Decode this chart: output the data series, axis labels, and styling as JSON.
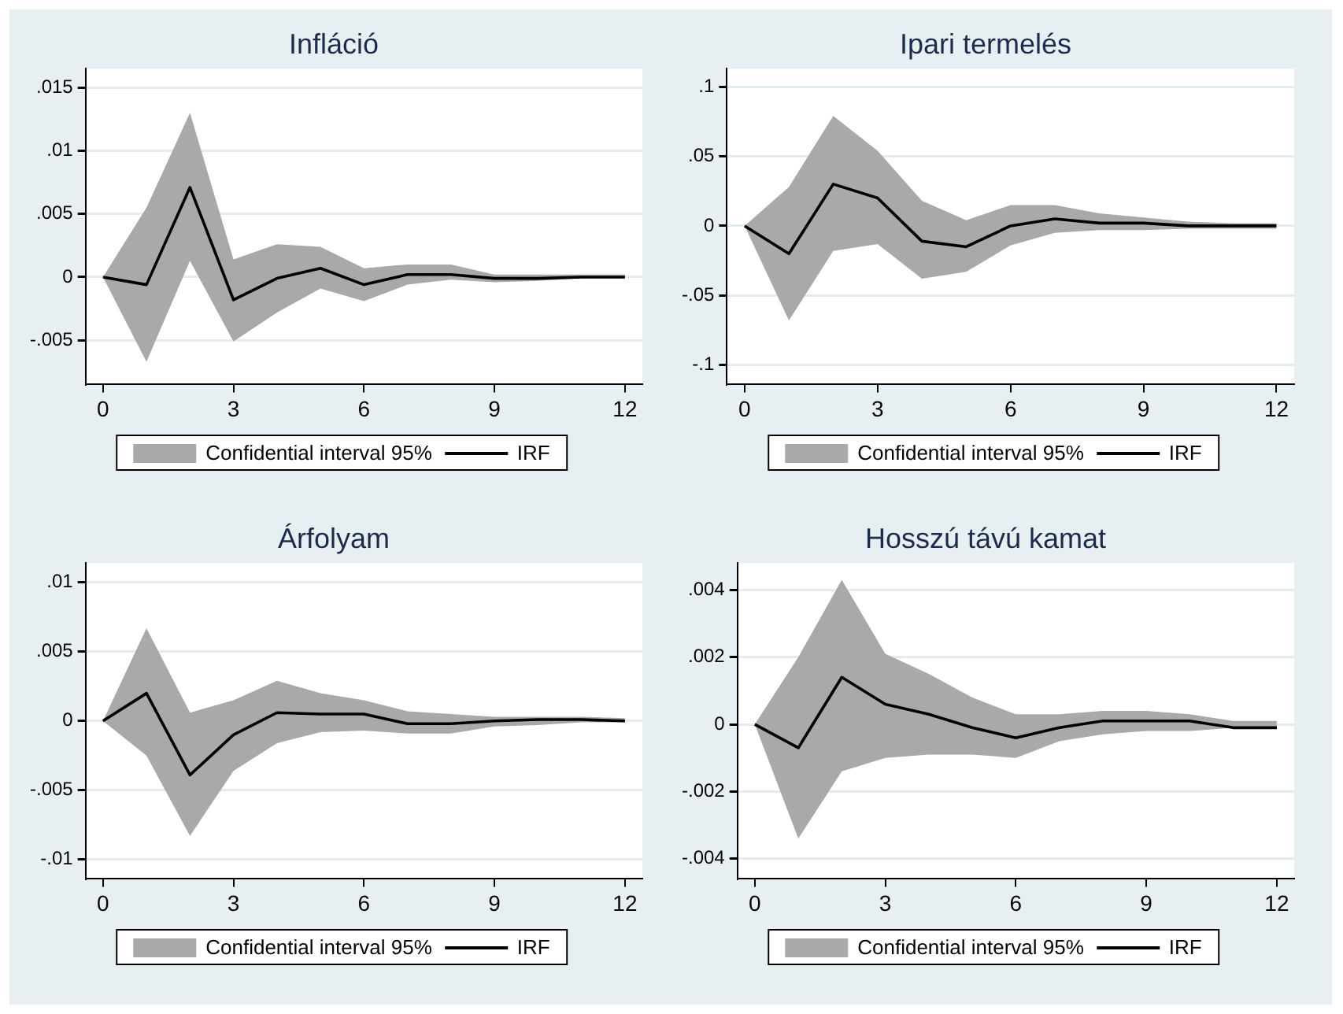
{
  "chart_data": [
    {
      "type": "line",
      "title": "Infláció",
      "annotations": [
        "Confidential interval 95%"
      ],
      "x": [
        0,
        1,
        2,
        3,
        4,
        5,
        6,
        7,
        8,
        9,
        10,
        11,
        12
      ],
      "xlim": [
        -0.4,
        12.4
      ],
      "xticks": [
        0,
        3,
        6,
        9,
        12
      ],
      "ylim": [
        -0.0085,
        0.0165
      ],
      "yticks": [
        {
          "value": -0.005,
          "label": "-.005"
        },
        {
          "value": 0,
          "label": "0"
        },
        {
          "value": 0.005,
          "label": ".005"
        },
        {
          "value": 0.01,
          "label": ".01"
        },
        {
          "value": 0.015,
          "label": ".015"
        }
      ],
      "grid": "y",
      "legend": "bottom",
      "marker": "none",
      "line_style": "solid",
      "series": [
        {
          "name": "IRF",
          "type": "line",
          "color": "#000000",
          "values": [
            0,
            -0.0006,
            0.0071,
            -0.0018,
            -0.0001,
            0.0007,
            -0.0006,
            0.0002,
            0.0002,
            -0.0001,
            -0.0001,
            0,
            0
          ],
          "lower": [
            0,
            -0.0067,
            0.0013,
            -0.0051,
            -0.0028,
            -0.0009,
            -0.0019,
            -0.0006,
            -0.0002,
            -0.0004,
            -0.0003,
            -0.0001,
            -0.0001
          ],
          "upper": [
            0,
            0.0055,
            0.013,
            0.0014,
            0.0026,
            0.0024,
            0.0007,
            0.001,
            0.001,
            0.0002,
            0.0002,
            0.0002,
            0.0002
          ]
        }
      ]
    },
    {
      "type": "line",
      "title": "Ipari termelés",
      "annotations": [
        "Confidential interval 95%"
      ],
      "x": [
        0,
        1,
        2,
        3,
        4,
        5,
        6,
        7,
        8,
        9,
        10,
        11,
        12
      ],
      "xlim": [
        -0.4,
        12.4
      ],
      "xticks": [
        0,
        3,
        6,
        9,
        12
      ],
      "ylim": [
        -0.114,
        0.113
      ],
      "yticks": [
        {
          "value": -0.1,
          "label": "-.1"
        },
        {
          "value": -0.05,
          "label": "-.05"
        },
        {
          "value": 0,
          "label": "0"
        },
        {
          "value": 0.05,
          "label": ".05"
        },
        {
          "value": 0.1,
          "label": ".1"
        }
      ],
      "grid": "y",
      "legend": "bottom",
      "marker": "none",
      "line_style": "solid",
      "series": [
        {
          "name": "IRF",
          "type": "line",
          "color": "#000000",
          "values": [
            0,
            -0.02,
            0.03,
            0.02,
            -0.011,
            -0.015,
            0,
            0.005,
            0.002,
            0.002,
            0,
            0,
            0
          ],
          "lower": [
            0,
            -0.068,
            -0.018,
            -0.013,
            -0.038,
            -0.033,
            -0.014,
            -0.005,
            -0.003,
            -0.003,
            -0.002,
            -0.002,
            -0.002
          ],
          "upper": [
            0,
            0.028,
            0.079,
            0.054,
            0.018,
            0.004,
            0.015,
            0.015,
            0.009,
            0.006,
            0.003,
            0.002,
            0.002
          ]
        }
      ]
    },
    {
      "type": "line",
      "title": "Árfolyam",
      "annotations": [
        "Confidential interval 95%"
      ],
      "x": [
        0,
        1,
        2,
        3,
        4,
        5,
        6,
        7,
        8,
        9,
        10,
        11,
        12
      ],
      "xlim": [
        -0.4,
        12.4
      ],
      "xticks": [
        0,
        3,
        6,
        9,
        12
      ],
      "ylim": [
        -0.0114,
        0.0114
      ],
      "yticks": [
        {
          "value": -0.01,
          "label": "-.01"
        },
        {
          "value": -0.005,
          "label": "-.005"
        },
        {
          "value": 0,
          "label": "0"
        },
        {
          "value": 0.005,
          "label": ".005"
        },
        {
          "value": 0.01,
          "label": ".01"
        }
      ],
      "grid": "y",
      "legend": "bottom",
      "marker": "none",
      "line_style": "solid",
      "series": [
        {
          "name": "IRF",
          "type": "line",
          "color": "#000000",
          "values": [
            0,
            0.002,
            -0.0039,
            -0.001,
            0.0006,
            0.0005,
            0.0005,
            -0.0002,
            -0.0002,
            0,
            0.0001,
            0.0001,
            0
          ],
          "lower": [
            0,
            -0.0025,
            -0.0083,
            -0.0036,
            -0.0016,
            -0.0008,
            -0.0007,
            -0.0009,
            -0.0009,
            -0.0004,
            -0.0003,
            -0.0001,
            -0.0001
          ],
          "upper": [
            0,
            0.0067,
            0.0006,
            0.0015,
            0.0029,
            0.002,
            0.0015,
            0.0007,
            0.0005,
            0.0003,
            0.0003,
            0.0003,
            0.0002
          ]
        }
      ]
    },
    {
      "type": "line",
      "title": "Hosszú távú kamat",
      "annotations": [
        "Confidential interval 95%"
      ],
      "x": [
        0,
        1,
        2,
        3,
        4,
        5,
        6,
        7,
        8,
        9,
        10,
        11,
        12
      ],
      "xlim": [
        -0.4,
        12.4
      ],
      "xticks": [
        0,
        3,
        6,
        9,
        12
      ],
      "ylim": [
        -0.0046,
        0.0048
      ],
      "yticks": [
        {
          "value": -0.004,
          "label": "-.004"
        },
        {
          "value": -0.002,
          "label": "-.002"
        },
        {
          "value": 0,
          "label": "0"
        },
        {
          "value": 0.002,
          "label": ".002"
        },
        {
          "value": 0.004,
          "label": ".004"
        }
      ],
      "grid": "y",
      "legend": "bottom",
      "marker": "none",
      "line_style": "solid",
      "series": [
        {
          "name": "IRF",
          "type": "line",
          "color": "#000000",
          "values": [
            0,
            -0.0007,
            0.0014,
            0.0006,
            0.0003,
            -0.0001,
            -0.0004,
            -0.0001,
            0.0001,
            0.0001,
            0.0001,
            -0.0001,
            -0.0001
          ],
          "lower": [
            0,
            -0.0034,
            -0.0014,
            -0.001,
            -0.0009,
            -0.0009,
            -0.001,
            -0.0005,
            -0.0003,
            -0.0002,
            -0.0002,
            -0.0001,
            -0.0001
          ],
          "upper": [
            0,
            0.002,
            0.0043,
            0.0021,
            0.0015,
            0.0008,
            0.0003,
            0.0003,
            0.0004,
            0.0004,
            0.0003,
            0.0001,
            0.0001
          ]
        }
      ]
    }
  ]
}
